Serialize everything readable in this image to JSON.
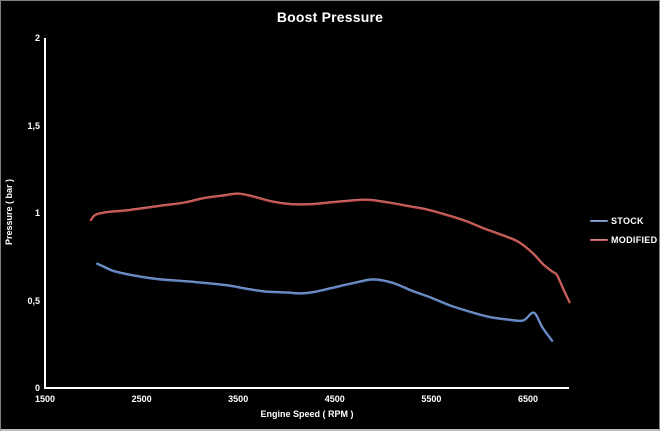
{
  "chart_data": {
    "type": "line",
    "title": "Boost Pressure",
    "xlabel": "Engine Speed ( RPM )",
    "ylabel": "Pressure ( bar )",
    "xlim": [
      1500,
      7000
    ],
    "ylim": [
      0,
      2
    ],
    "x_ticks": [
      1500,
      2500,
      3500,
      4500,
      5500,
      6500
    ],
    "x_tick_labels": [
      "1500",
      "2500",
      "3500",
      "4500",
      "5500",
      "6500"
    ],
    "y_ticks": [
      0,
      0.5,
      1,
      1.5,
      2
    ],
    "y_tick_labels": [
      "0",
      "0,5",
      "1",
      "1,5",
      "2"
    ],
    "grid": false,
    "legend_position": "right",
    "background_color": "#000000",
    "text_color": "#FFFFFF",
    "axis_color": "#FFFFFF",
    "series": [
      {
        "name": "STOCK",
        "color": "#5B80BE",
        "highlight": "#9FB6DE",
        "points": [
          [
            2040,
            0.71
          ],
          [
            2100,
            0.695
          ],
          [
            2200,
            0.67
          ],
          [
            2350,
            0.65
          ],
          [
            2500,
            0.635
          ],
          [
            2700,
            0.62
          ],
          [
            2950,
            0.61
          ],
          [
            3150,
            0.6
          ],
          [
            3400,
            0.585
          ],
          [
            3600,
            0.565
          ],
          [
            3800,
            0.55
          ],
          [
            4000,
            0.545
          ],
          [
            4150,
            0.54
          ],
          [
            4300,
            0.55
          ],
          [
            4500,
            0.575
          ],
          [
            4700,
            0.6
          ],
          [
            4900,
            0.62
          ],
          [
            5100,
            0.6
          ],
          [
            5300,
            0.555
          ],
          [
            5500,
            0.515
          ],
          [
            5700,
            0.47
          ],
          [
            5900,
            0.435
          ],
          [
            6100,
            0.405
          ],
          [
            6300,
            0.39
          ],
          [
            6450,
            0.385
          ],
          [
            6560,
            0.43
          ],
          [
            6650,
            0.345
          ],
          [
            6750,
            0.27
          ]
        ]
      },
      {
        "name": "MODIFIED",
        "color": "#BF4E4B",
        "highlight": "#DD9490",
        "points": [
          [
            1975,
            0.96
          ],
          [
            2025,
            0.99
          ],
          [
            2150,
            1.005
          ],
          [
            2350,
            1.015
          ],
          [
            2550,
            1.03
          ],
          [
            2750,
            1.045
          ],
          [
            2950,
            1.06
          ],
          [
            3150,
            1.085
          ],
          [
            3350,
            1.1
          ],
          [
            3500,
            1.11
          ],
          [
            3650,
            1.095
          ],
          [
            3850,
            1.065
          ],
          [
            4050,
            1.05
          ],
          [
            4250,
            1.05
          ],
          [
            4450,
            1.06
          ],
          [
            4650,
            1.07
          ],
          [
            4850,
            1.075
          ],
          [
            5050,
            1.06
          ],
          [
            5250,
            1.04
          ],
          [
            5450,
            1.02
          ],
          [
            5650,
            0.99
          ],
          [
            5850,
            0.955
          ],
          [
            6050,
            0.91
          ],
          [
            6250,
            0.87
          ],
          [
            6400,
            0.835
          ],
          [
            6550,
            0.77
          ],
          [
            6650,
            0.71
          ],
          [
            6750,
            0.665
          ],
          [
            6800,
            0.645
          ],
          [
            6870,
            0.56
          ],
          [
            6930,
            0.49
          ]
        ]
      }
    ]
  }
}
